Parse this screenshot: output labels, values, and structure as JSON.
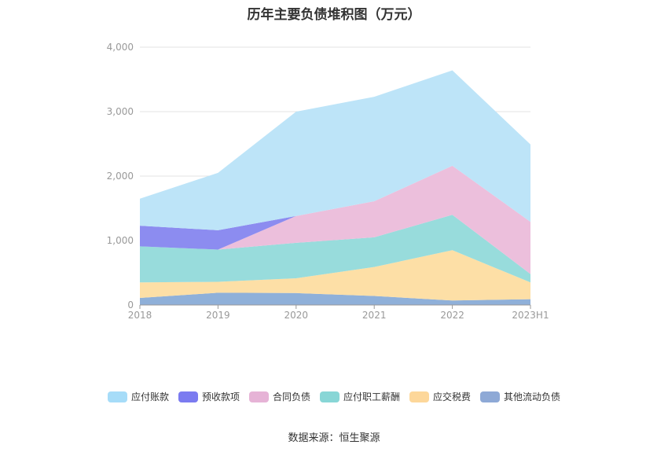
{
  "title": "历年主要负债堆积图（万元）",
  "source": "数据来源：恒生聚源",
  "chart_data": {
    "type": "area",
    "stacked": true,
    "categories": [
      "2018",
      "2019",
      "2020",
      "2021",
      "2022",
      "2023H1"
    ],
    "ylim": [
      0,
      4000
    ],
    "yticks": [
      "0",
      "1,000",
      "2,000",
      "3,000",
      "4,000"
    ],
    "grid": true,
    "legend_position": "bottom",
    "series": [
      {
        "name": "其他流动负债",
        "color": "#8fb0d9",
        "values": [
          110,
          190,
          185,
          140,
          70,
          90
        ]
      },
      {
        "name": "应交税费",
        "color": "#fddfa6",
        "values": [
          240,
          170,
          230,
          450,
          780,
          260
        ]
      },
      {
        "name": "应付职工薪酬",
        "color": "#98dcdc",
        "values": [
          560,
          500,
          550,
          460,
          550,
          130
        ]
      },
      {
        "name": "合同负债",
        "color": "#ecbfdc",
        "values": [
          0,
          0,
          415,
          560,
          760,
          810
        ]
      },
      {
        "name": "预收款项",
        "color": "#8c8cf0",
        "values": [
          320,
          300,
          0,
          0,
          0,
          0
        ]
      },
      {
        "name": "应付账款",
        "color": "#bde4f8",
        "values": [
          420,
          890,
          1620,
          1620,
          1480,
          1200
        ]
      }
    ]
  },
  "legend_order": [
    {
      "name": "应付账款",
      "color": "#a6dcf8"
    },
    {
      "name": "预收款项",
      "color": "#7b7bf0"
    },
    {
      "name": "合同负债",
      "color": "#e6b3d6"
    },
    {
      "name": "应付职工薪酬",
      "color": "#88d6d6"
    },
    {
      "name": "应交税费",
      "color": "#fdd79a"
    },
    {
      "name": "其他流动负债",
      "color": "#8ea9d6"
    }
  ]
}
